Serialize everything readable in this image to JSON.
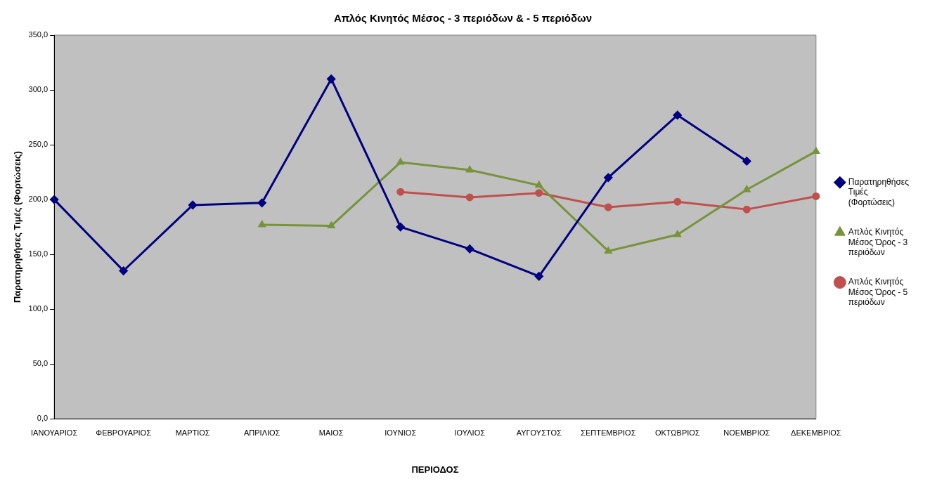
{
  "chart_data": {
    "type": "line",
    "title": "Απλός Κινητός Μέσος - 3 περιόδων & - 5 περιόδων",
    "xlabel": "ΠΕΡΙΟΔΟΣ",
    "ylabel": "Παρατηρηθήσες Τιμές (Φορτώσεις)",
    "categories": [
      "ΙΑΝΟΥΑΡΙΟΣ",
      "ΦΕΒΡΟΥΑΡΙΟΣ",
      "ΜΑΡΤΙΟΣ",
      "ΑΠΡΙΛΙΟΣ",
      "ΜΑΙΟΣ",
      "ΙΟΥΝΙΟΣ",
      "ΙΟΥΛΙΟΣ",
      "ΑΥΓΟΥΣΤΟΣ",
      "ΣΕΠΤΕΜΒΡΙΟΣ",
      "ΟΚΤΩΒΡΙΟΣ",
      "ΝΟΕΜΒΡΙΟΣ",
      "ΔΕΚΕΜΒΡΙΟΣ"
    ],
    "series": [
      {
        "name": "Παρατηρηθήσες Τιμές (Φορτώσεις)",
        "color": "#000080",
        "marker": "diamond",
        "values": [
          200,
          135,
          195,
          197,
          310,
          175,
          155,
          130,
          220,
          277,
          235,
          null
        ]
      },
      {
        "name": "Απλός Κινητός Μέσος Όρος - 3 περιόδων",
        "color": "#77933c",
        "marker": "triangle",
        "values": [
          null,
          null,
          null,
          177,
          176,
          234,
          227,
          213,
          153,
          168,
          209,
          244
        ]
      },
      {
        "name": "Απλός Κινητός Μέσος Όρος - 5 περιόδων",
        "color": "#c0504d",
        "marker": "circle",
        "values": [
          null,
          null,
          null,
          null,
          null,
          207,
          202,
          206,
          193,
          198,
          191,
          203
        ]
      }
    ],
    "ylim": [
      0,
      350
    ],
    "yticks": [
      {
        "value": 0,
        "label": "0,0"
      },
      {
        "value": 50,
        "label": "50,0"
      },
      {
        "value": 100,
        "label": "100,0"
      },
      {
        "value": 150,
        "label": "150,0"
      },
      {
        "value": 200,
        "label": "200,0"
      },
      {
        "value": 250,
        "label": "250,0"
      },
      {
        "value": 300,
        "label": "300,0"
      },
      {
        "value": 350,
        "label": "350,0"
      }
    ],
    "grid": false,
    "legend": "right",
    "line_style": "solid"
  }
}
